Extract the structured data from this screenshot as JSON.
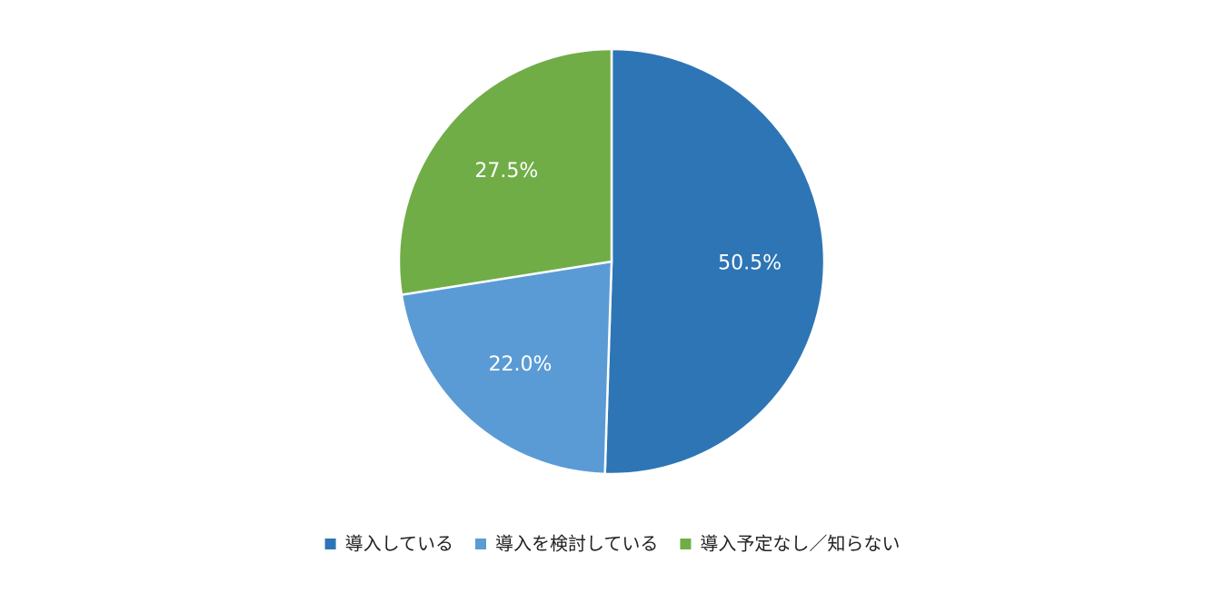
{
  "chart_data": {
    "type": "pie",
    "categories": [
      "導入している",
      "導入を検討している",
      "導入予定なし／知らない"
    ],
    "values": [
      50.5,
      22.0,
      27.5
    ],
    "value_labels": [
      "50.5%",
      "22.0%",
      "27.5%"
    ],
    "colors": [
      "#2e75b6",
      "#5b9bd5",
      "#70ad47"
    ],
    "legend": "bottom"
  }
}
